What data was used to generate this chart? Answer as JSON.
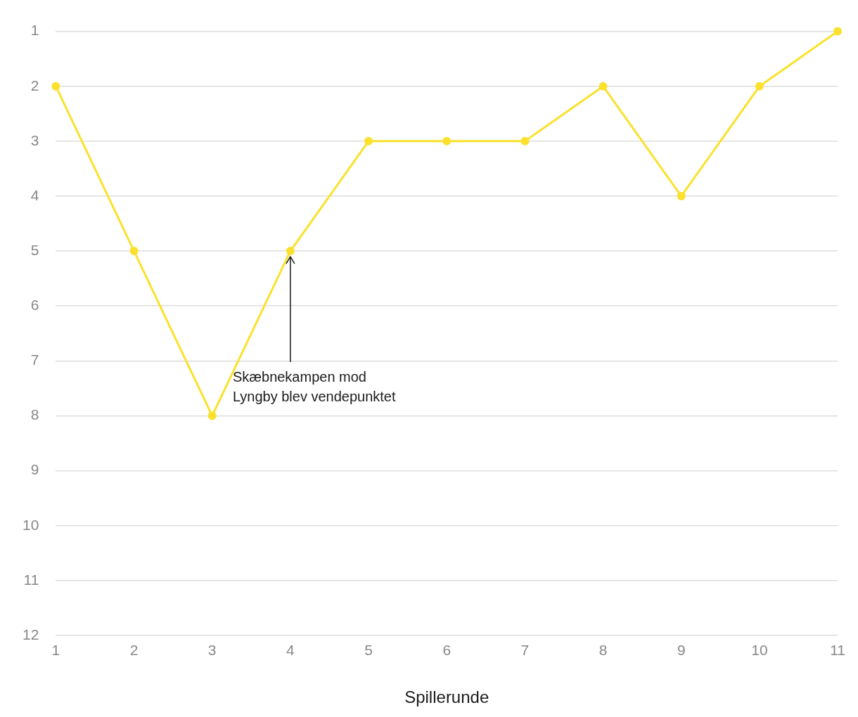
{
  "chart_data": {
    "type": "line",
    "xlabel": "Spillerunde",
    "x": [
      1,
      2,
      3,
      4,
      5,
      6,
      7,
      8,
      9,
      10,
      11
    ],
    "series": [
      {
        "color": "#fbe12d",
        "values": [
          2,
          5,
          8,
          5,
          3,
          3,
          3,
          2,
          4,
          2,
          1
        ]
      }
    ],
    "xlim": [
      1,
      11
    ],
    "xticks": [
      1,
      2,
      3,
      4,
      5,
      6,
      7,
      8,
      9,
      10,
      11
    ],
    "ylim": [
      12,
      1
    ],
    "yticks": [
      1,
      2,
      3,
      4,
      5,
      6,
      7,
      8,
      9,
      10,
      11,
      12
    ],
    "grid": "y",
    "legend": false,
    "marker": "circle",
    "line_style": "solid",
    "annotations": [
      {
        "text": "Skæbnekampen mod\nLyngby blev vendepunktet",
        "x": 4,
        "y": 5
      }
    ]
  }
}
